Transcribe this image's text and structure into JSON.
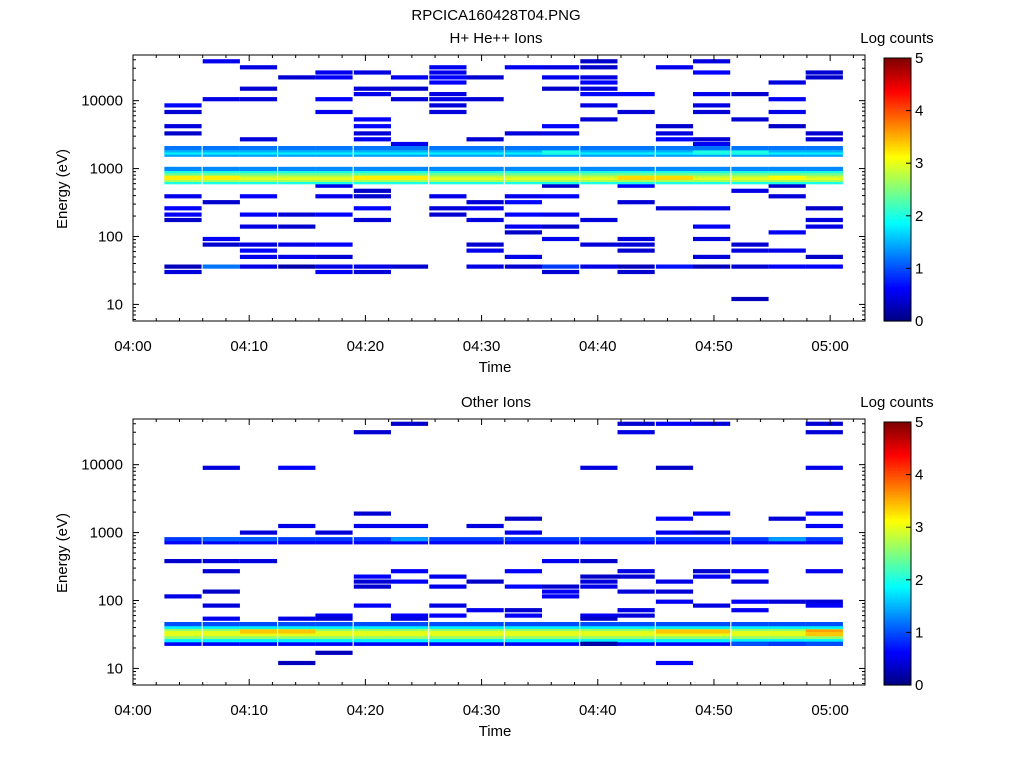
{
  "figure_title": "RPCICA160428T04.PNG",
  "colorscale": [
    "#00007f",
    "#0000ff",
    "#007fff",
    "#00ffff",
    "#7fff7f",
    "#ffff00",
    "#ff7f00",
    "#ff0000",
    "#7f0000"
  ],
  "chart_data": [
    {
      "type": "heatmap",
      "title": "H+ He++ Ions",
      "xlabel": "Time",
      "ylabel": "Energy (eV)",
      "colorbar_label": "Log counts",
      "xlim": [
        "04:00",
        "05:03"
      ],
      "x_ticks": [
        "04:00",
        "04:10",
        "04:20",
        "04:30",
        "04:40",
        "04:50",
        "05:00"
      ],
      "y_scale": "log",
      "ylim": [
        5.7,
        47000
      ],
      "y_ticks": [
        10,
        100,
        1000,
        10000
      ],
      "y_tick_labels": [
        "10",
        "100",
        "1000",
        "10000"
      ],
      "clim": [
        0,
        5
      ],
      "c_ticks": [
        "0",
        "1",
        "2",
        "3",
        "4",
        "5"
      ],
      "time_bin_starts_min": [
        2.7,
        6.0,
        9.2,
        12.5,
        15.7,
        19.0,
        22.2,
        25.5,
        28.7,
        32.0,
        35.2,
        38.5,
        41.7,
        45.0,
        48.2,
        51.5,
        54.7,
        57.9
      ],
      "time_bin_width_min": 3.2,
      "cells": [
        {
          "bins": "all",
          "e": 630,
          "v": 2.0
        },
        {
          "bins": "all",
          "e": 680,
          "v": 2.7
        },
        {
          "bins": "all",
          "e": 730,
          "v": 3.0
        },
        {
          "bins": "all",
          "e": 790,
          "v": 2.8
        },
        {
          "bins": "all",
          "e": 850,
          "v": 2.4
        },
        {
          "bins": "all",
          "e": 920,
          "v": 2.0
        },
        {
          "bins": "all",
          "e": 990,
          "v": 1.3
        },
        {
          "bins": "all",
          "e": 1600,
          "v": 1.4
        },
        {
          "bins": "all",
          "e": 1720,
          "v": 1.8
        },
        {
          "bins": "all",
          "e": 1860,
          "v": 1.5
        },
        {
          "bins": "all",
          "e": 2000,
          "v": 1.2
        },
        {
          "bins": [
            0,
            1
          ],
          "e": 730,
          "v": 3.2
        },
        {
          "bins": [
            5,
            6
          ],
          "e": 730,
          "v": 3.2
        },
        {
          "bins": [
            12,
            13
          ],
          "e": 730,
          "v": 3.3
        },
        {
          "bins": [
            16
          ],
          "e": 730,
          "v": 3.1
        },
        {
          "bins": [
            10
          ],
          "e": 1720,
          "v": 2.0
        },
        {
          "bins": [
            14,
            15
          ],
          "e": 1720,
          "v": 2.0
        },
        {
          "bins": [
            0
          ],
          "e": 36,
          "v": 0.3
        },
        {
          "bins": [
            1
          ],
          "e": 36,
          "v": 1.2
        },
        {
          "bins": [
            2
          ],
          "e": 36,
          "v": 0.5
        },
        {
          "bins": [
            3
          ],
          "e": 36,
          "v": 0.2
        },
        {
          "bins": [
            4
          ],
          "e": 36,
          "v": 0.5
        },
        {
          "bins": [
            5
          ],
          "e": 36,
          "v": 0.5
        },
        {
          "bins": [
            6
          ],
          "e": 36,
          "v": 0.4
        },
        {
          "bins": [
            8
          ],
          "e": 36,
          "v": 0.5
        },
        {
          "bins": [
            9
          ],
          "e": 36,
          "v": 0.4
        },
        {
          "bins": [
            10
          ],
          "e": 36,
          "v": 0.9
        },
        {
          "bins": [
            11
          ],
          "e": 36,
          "v": 0.5
        },
        {
          "bins": [
            12
          ],
          "e": 36,
          "v": 0.3
        },
        {
          "bins": [
            13
          ],
          "e": 36,
          "v": 0.7
        },
        {
          "bins": [
            14
          ],
          "e": 36,
          "v": 0.3
        },
        {
          "bins": [
            15
          ],
          "e": 36,
          "v": 0.4
        },
        {
          "bins": [
            16
          ],
          "e": 36,
          "v": 0.6
        },
        {
          "bins": [
            17
          ],
          "e": 36,
          "v": 0.6
        },
        {
          "bins": [
            15
          ],
          "e": 12,
          "v": 0.3
        }
      ],
      "sparse_counts": {
        "v": 0.35,
        "energies": [
          38000,
          31000,
          26000,
          22000,
          18500,
          15000,
          12500,
          10500,
          8500,
          6800,
          5300,
          4200,
          3300,
          2700,
          2300,
          560,
          470,
          390,
          320,
          260,
          210,
          175,
          140,
          115,
          92,
          76,
          62,
          50,
          30
        ],
        "seed": 7,
        "density": 0.28
      }
    },
    {
      "type": "heatmap",
      "title": "Other Ions",
      "xlabel": "Time",
      "ylabel": "Energy (eV)",
      "colorbar_label": "Log counts",
      "xlim": [
        "04:00",
        "05:03"
      ],
      "x_ticks": [
        "04:00",
        "04:10",
        "04:20",
        "04:30",
        "04:40",
        "04:50",
        "05:00"
      ],
      "y_scale": "log",
      "ylim": [
        5.7,
        47000
      ],
      "y_ticks": [
        10,
        100,
        1000,
        10000
      ],
      "y_tick_labels": [
        "10",
        "100",
        "1000",
        "10000"
      ],
      "clim": [
        0,
        5
      ],
      "c_ticks": [
        "0",
        "1",
        "2",
        "3",
        "4",
        "5"
      ],
      "time_bin_starts_min": [
        2.7,
        6.0,
        9.2,
        12.5,
        15.7,
        19.0,
        22.2,
        25.5,
        28.7,
        32.0,
        35.2,
        38.5,
        41.7,
        45.0,
        48.2,
        51.5,
        54.7,
        57.9
      ],
      "time_bin_width_min": 3.2,
      "cells": [
        {
          "bins": "all",
          "e": 23,
          "v": 0.6
        },
        {
          "bins": "all",
          "e": 26,
          "v": 1.8
        },
        {
          "bins": "all",
          "e": 29,
          "v": 2.6
        },
        {
          "bins": "all",
          "e": 32,
          "v": 3.0
        },
        {
          "bins": "all",
          "e": 35,
          "v": 3.0
        },
        {
          "bins": "all",
          "e": 38,
          "v": 2.6
        },
        {
          "bins": "all",
          "e": 41,
          "v": 1.8
        },
        {
          "bins": "all",
          "e": 45,
          "v": 1.0
        },
        {
          "bins": [
            2,
            3
          ],
          "e": 35,
          "v": 3.4
        },
        {
          "bins": [
            13,
            14
          ],
          "e": 35,
          "v": 3.4
        },
        {
          "bins": [
            17
          ],
          "e": 35,
          "v": 3.6
        },
        {
          "bins": [
            17
          ],
          "e": 32,
          "v": 3.4
        },
        {
          "bins": [
            11
          ],
          "e": 23,
          "v": 0.2
        },
        {
          "bins": [
            15
          ],
          "e": 23,
          "v": 1.0
        },
        {
          "bins": [
            16
          ],
          "e": 23,
          "v": 0.9
        },
        {
          "bins": [
            17
          ],
          "e": 23,
          "v": 1.0
        },
        {
          "bins": "all",
          "e": 720,
          "v": 0.6
        },
        {
          "bins": "all",
          "e": 800,
          "v": 0.9
        },
        {
          "bins": [
            1,
            2
          ],
          "e": 800,
          "v": 1.1
        },
        {
          "bins": [
            16
          ],
          "e": 800,
          "v": 1.4
        },
        {
          "bins": [
            6
          ],
          "e": 800,
          "v": 1.4
        },
        {
          "bins": [
            3
          ],
          "e": 12,
          "v": 0.3
        },
        {
          "bins": [
            4
          ],
          "e": 17,
          "v": 0.3
        },
        {
          "bins": [
            13
          ],
          "e": 12,
          "v": 0.6
        }
      ],
      "sparse_counts": {
        "v": 0.35,
        "energies": [
          40000,
          30000,
          9000,
          1900,
          1600,
          1250,
          1000,
          380,
          270,
          225,
          190,
          160,
          135,
          115,
          96,
          84,
          72,
          60,
          54
        ],
        "seed": 13,
        "density": 0.24
      }
    }
  ]
}
